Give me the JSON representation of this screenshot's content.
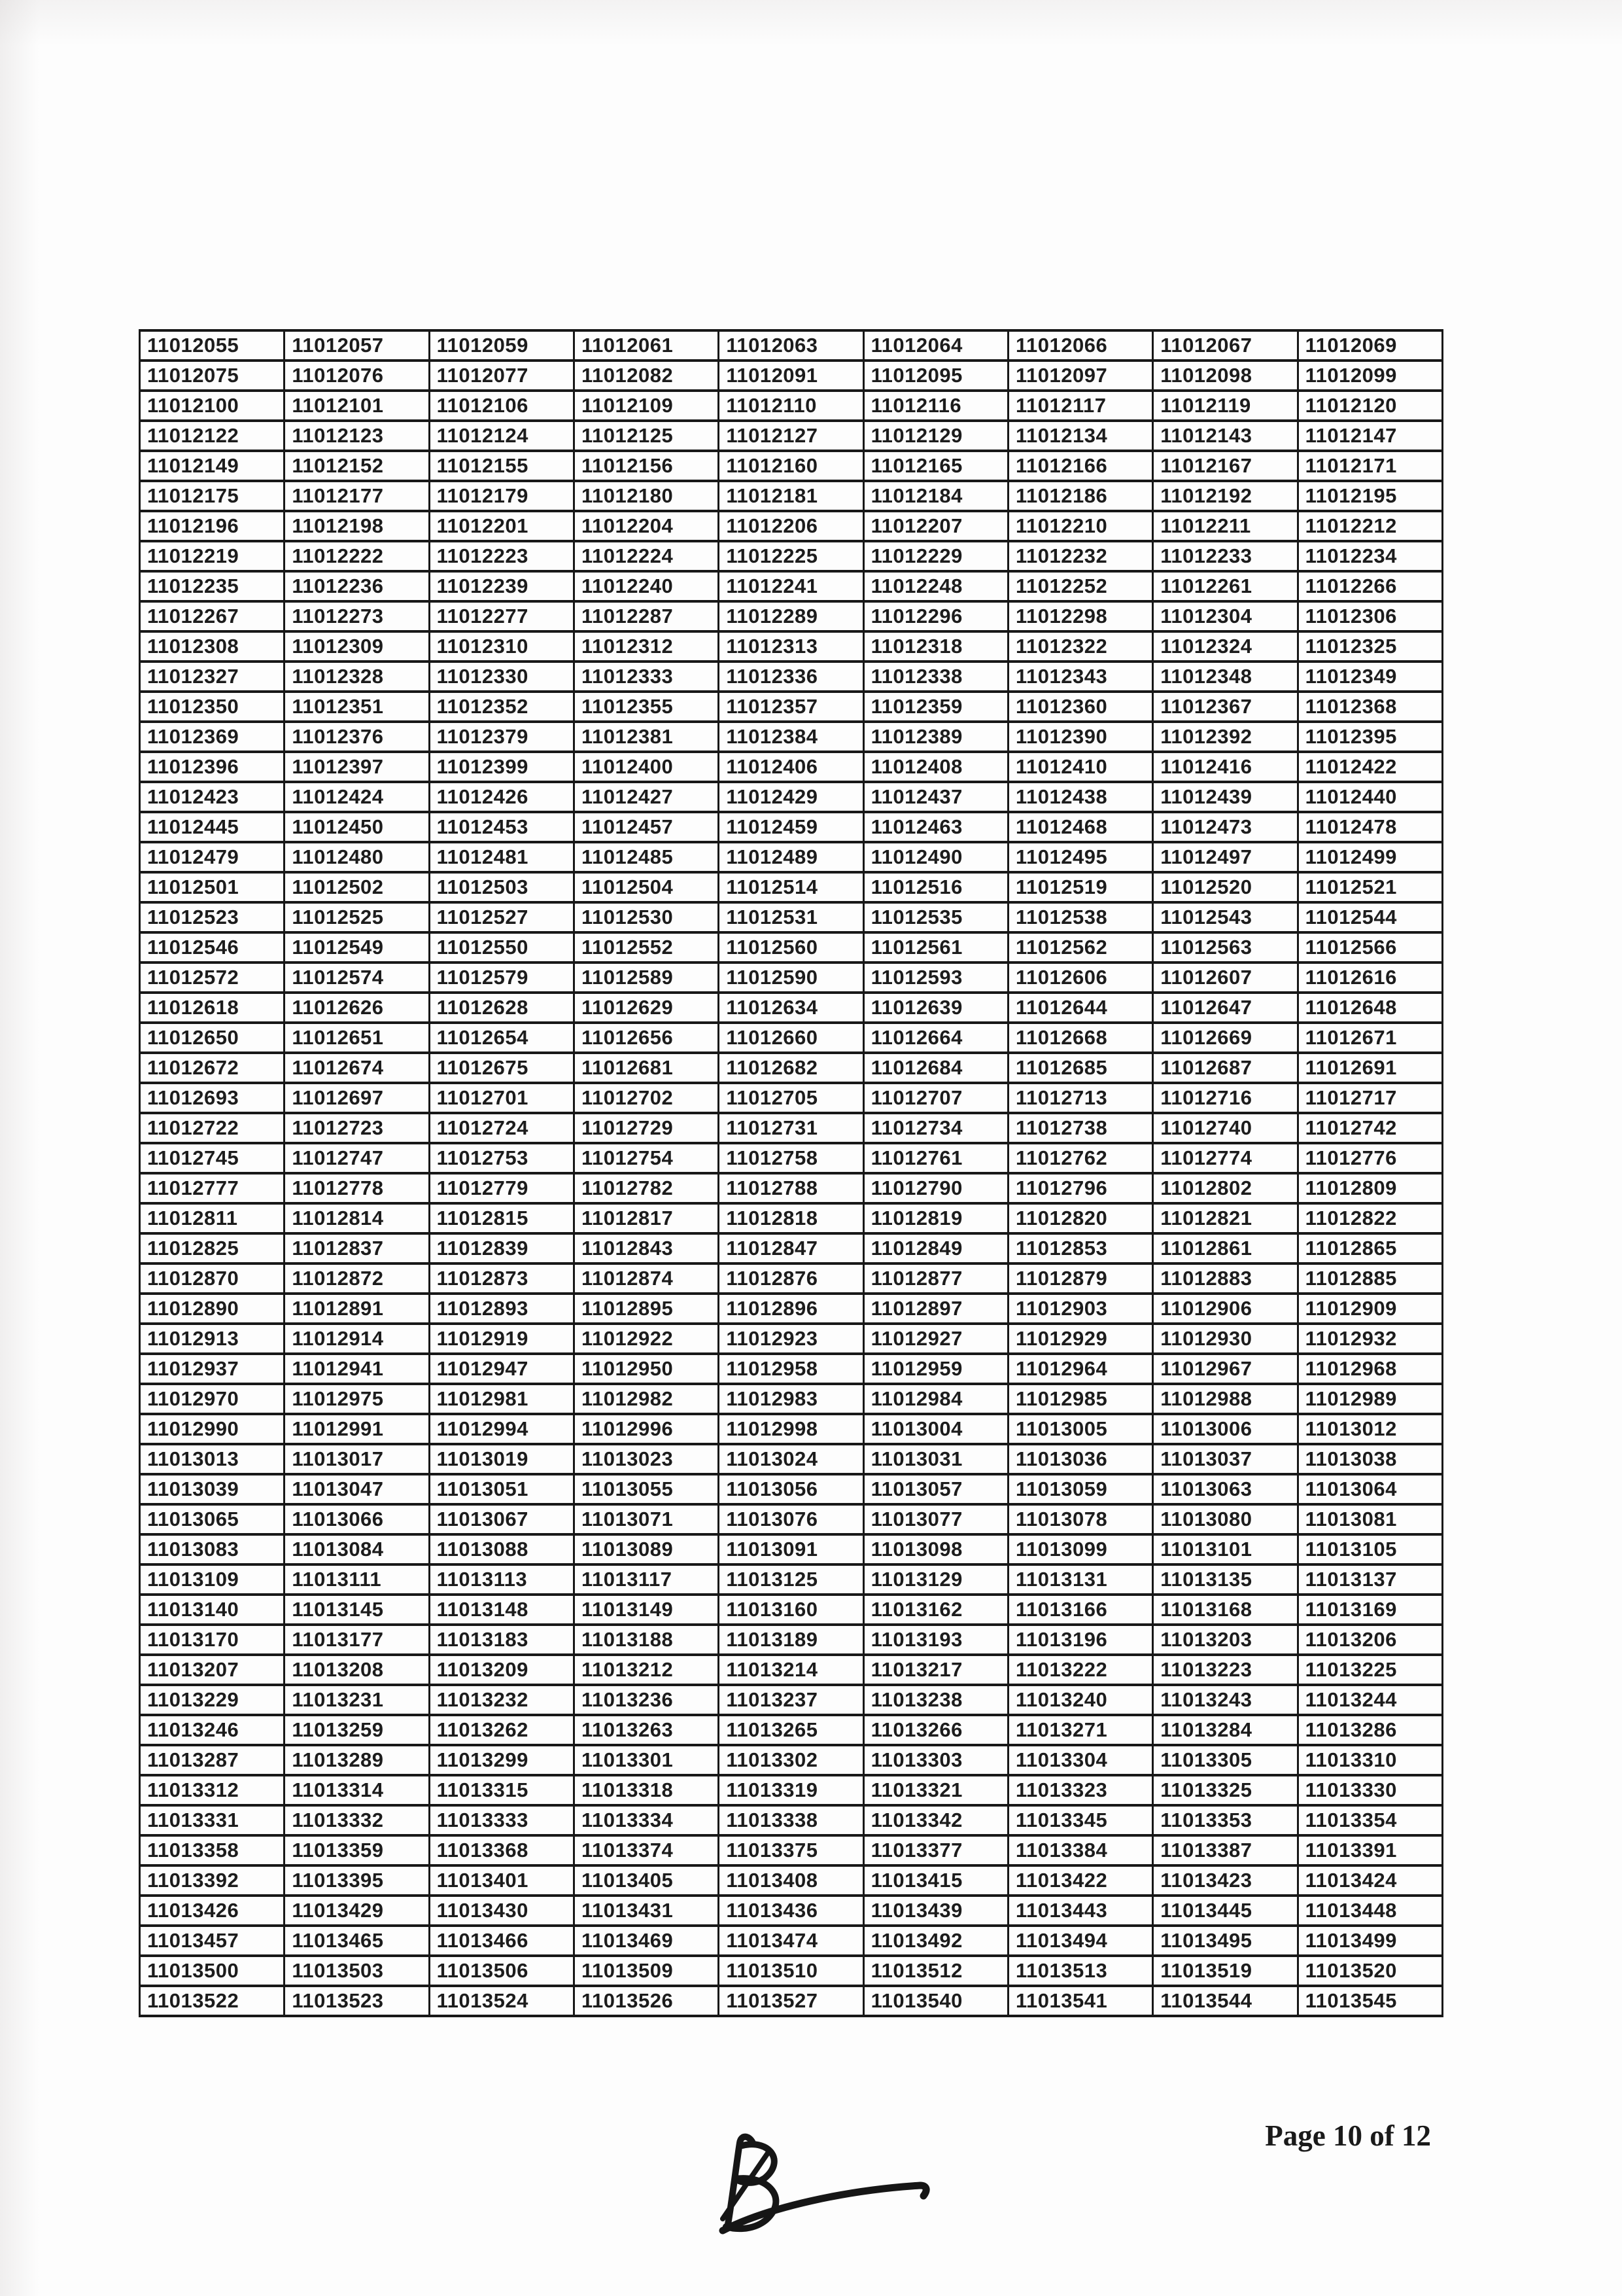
{
  "page": {
    "footer_text": "Page 10 of 12"
  },
  "table": {
    "columns": 9,
    "rows": [
      [
        "11012055",
        "11012057",
        "11012059",
        "11012061",
        "11012063",
        "11012064",
        "11012066",
        "11012067",
        "11012069"
      ],
      [
        "11012075",
        "11012076",
        "11012077",
        "11012082",
        "11012091",
        "11012095",
        "11012097",
        "11012098",
        "11012099"
      ],
      [
        "11012100",
        "11012101",
        "11012106",
        "11012109",
        "11012110",
        "11012116",
        "11012117",
        "11012119",
        "11012120"
      ],
      [
        "11012122",
        "11012123",
        "11012124",
        "11012125",
        "11012127",
        "11012129",
        "11012134",
        "11012143",
        "11012147"
      ],
      [
        "11012149",
        "11012152",
        "11012155",
        "11012156",
        "11012160",
        "11012165",
        "11012166",
        "11012167",
        "11012171"
      ],
      [
        "11012175",
        "11012177",
        "11012179",
        "11012180",
        "11012181",
        "11012184",
        "11012186",
        "11012192",
        "11012195"
      ],
      [
        "11012196",
        "11012198",
        "11012201",
        "11012204",
        "11012206",
        "11012207",
        "11012210",
        "11012211",
        "11012212"
      ],
      [
        "11012219",
        "11012222",
        "11012223",
        "11012224",
        "11012225",
        "11012229",
        "11012232",
        "11012233",
        "11012234"
      ],
      [
        "11012235",
        "11012236",
        "11012239",
        "11012240",
        "11012241",
        "11012248",
        "11012252",
        "11012261",
        "11012266"
      ],
      [
        "11012267",
        "11012273",
        "11012277",
        "11012287",
        "11012289",
        "11012296",
        "11012298",
        "11012304",
        "11012306"
      ],
      [
        "11012308",
        "11012309",
        "11012310",
        "11012312",
        "11012313",
        "11012318",
        "11012322",
        "11012324",
        "11012325"
      ],
      [
        "11012327",
        "11012328",
        "11012330",
        "11012333",
        "11012336",
        "11012338",
        "11012343",
        "11012348",
        "11012349"
      ],
      [
        "11012350",
        "11012351",
        "11012352",
        "11012355",
        "11012357",
        "11012359",
        "11012360",
        "11012367",
        "11012368"
      ],
      [
        "11012369",
        "11012376",
        "11012379",
        "11012381",
        "11012384",
        "11012389",
        "11012390",
        "11012392",
        "11012395"
      ],
      [
        "11012396",
        "11012397",
        "11012399",
        "11012400",
        "11012406",
        "11012408",
        "11012410",
        "11012416",
        "11012422"
      ],
      [
        "11012423",
        "11012424",
        "11012426",
        "11012427",
        "11012429",
        "11012437",
        "11012438",
        "11012439",
        "11012440"
      ],
      [
        "11012445",
        "11012450",
        "11012453",
        "11012457",
        "11012459",
        "11012463",
        "11012468",
        "11012473",
        "11012478"
      ],
      [
        "11012479",
        "11012480",
        "11012481",
        "11012485",
        "11012489",
        "11012490",
        "11012495",
        "11012497",
        "11012499"
      ],
      [
        "11012501",
        "11012502",
        "11012503",
        "11012504",
        "11012514",
        "11012516",
        "11012519",
        "11012520",
        "11012521"
      ],
      [
        "11012523",
        "11012525",
        "11012527",
        "11012530",
        "11012531",
        "11012535",
        "11012538",
        "11012543",
        "11012544"
      ],
      [
        "11012546",
        "11012549",
        "11012550",
        "11012552",
        "11012560",
        "11012561",
        "11012562",
        "11012563",
        "11012566"
      ],
      [
        "11012572",
        "11012574",
        "11012579",
        "11012589",
        "11012590",
        "11012593",
        "11012606",
        "11012607",
        "11012616"
      ],
      [
        "11012618",
        "11012626",
        "11012628",
        "11012629",
        "11012634",
        "11012639",
        "11012644",
        "11012647",
        "11012648"
      ],
      [
        "11012650",
        "11012651",
        "11012654",
        "11012656",
        "11012660",
        "11012664",
        "11012668",
        "11012669",
        "11012671"
      ],
      [
        "11012672",
        "11012674",
        "11012675",
        "11012681",
        "11012682",
        "11012684",
        "11012685",
        "11012687",
        "11012691"
      ],
      [
        "11012693",
        "11012697",
        "11012701",
        "11012702",
        "11012705",
        "11012707",
        "11012713",
        "11012716",
        "11012717"
      ],
      [
        "11012722",
        "11012723",
        "11012724",
        "11012729",
        "11012731",
        "11012734",
        "11012738",
        "11012740",
        "11012742"
      ],
      [
        "11012745",
        "11012747",
        "11012753",
        "11012754",
        "11012758",
        "11012761",
        "11012762",
        "11012774",
        "11012776"
      ],
      [
        "11012777",
        "11012778",
        "11012779",
        "11012782",
        "11012788",
        "11012790",
        "11012796",
        "11012802",
        "11012809"
      ],
      [
        "11012811",
        "11012814",
        "11012815",
        "11012817",
        "11012818",
        "11012819",
        "11012820",
        "11012821",
        "11012822"
      ],
      [
        "11012825",
        "11012837",
        "11012839",
        "11012843",
        "11012847",
        "11012849",
        "11012853",
        "11012861",
        "11012865"
      ],
      [
        "11012870",
        "11012872",
        "11012873",
        "11012874",
        "11012876",
        "11012877",
        "11012879",
        "11012883",
        "11012885"
      ],
      [
        "11012890",
        "11012891",
        "11012893",
        "11012895",
        "11012896",
        "11012897",
        "11012903",
        "11012906",
        "11012909"
      ],
      [
        "11012913",
        "11012914",
        "11012919",
        "11012922",
        "11012923",
        "11012927",
        "11012929",
        "11012930",
        "11012932"
      ],
      [
        "11012937",
        "11012941",
        "11012947",
        "11012950",
        "11012958",
        "11012959",
        "11012964",
        "11012967",
        "11012968"
      ],
      [
        "11012970",
        "11012975",
        "11012981",
        "11012982",
        "11012983",
        "11012984",
        "11012985",
        "11012988",
        "11012989"
      ],
      [
        "11012990",
        "11012991",
        "11012994",
        "11012996",
        "11012998",
        "11013004",
        "11013005",
        "11013006",
        "11013012"
      ],
      [
        "11013013",
        "11013017",
        "11013019",
        "11013023",
        "11013024",
        "11013031",
        "11013036",
        "11013037",
        "11013038"
      ],
      [
        "11013039",
        "11013047",
        "11013051",
        "11013055",
        "11013056",
        "11013057",
        "11013059",
        "11013063",
        "11013064"
      ],
      [
        "11013065",
        "11013066",
        "11013067",
        "11013071",
        "11013076",
        "11013077",
        "11013078",
        "11013080",
        "11013081"
      ],
      [
        "11013083",
        "11013084",
        "11013088",
        "11013089",
        "11013091",
        "11013098",
        "11013099",
        "11013101",
        "11013105"
      ],
      [
        "11013109",
        "11013111",
        "11013113",
        "11013117",
        "11013125",
        "11013129",
        "11013131",
        "11013135",
        "11013137"
      ],
      [
        "11013140",
        "11013145",
        "11013148",
        "11013149",
        "11013160",
        "11013162",
        "11013166",
        "11013168",
        "11013169"
      ],
      [
        "11013170",
        "11013177",
        "11013183",
        "11013188",
        "11013189",
        "11013193",
        "11013196",
        "11013203",
        "11013206"
      ],
      [
        "11013207",
        "11013208",
        "11013209",
        "11013212",
        "11013214",
        "11013217",
        "11013222",
        "11013223",
        "11013225"
      ],
      [
        "11013229",
        "11013231",
        "11013232",
        "11013236",
        "11013237",
        "11013238",
        "11013240",
        "11013243",
        "11013244"
      ],
      [
        "11013246",
        "11013259",
        "11013262",
        "11013263",
        "11013265",
        "11013266",
        "11013271",
        "11013284",
        "11013286"
      ],
      [
        "11013287",
        "11013289",
        "11013299",
        "11013301",
        "11013302",
        "11013303",
        "11013304",
        "11013305",
        "11013310"
      ],
      [
        "11013312",
        "11013314",
        "11013315",
        "11013318",
        "11013319",
        "11013321",
        "11013323",
        "11013325",
        "11013330"
      ],
      [
        "11013331",
        "11013332",
        "11013333",
        "11013334",
        "11013338",
        "11013342",
        "11013345",
        "11013353",
        "11013354"
      ],
      [
        "11013358",
        "11013359",
        "11013368",
        "11013374",
        "11013375",
        "11013377",
        "11013384",
        "11013387",
        "11013391"
      ],
      [
        "11013392",
        "11013395",
        "11013401",
        "11013405",
        "11013408",
        "11013415",
        "11013422",
        "11013423",
        "11013424"
      ],
      [
        "11013426",
        "11013429",
        "11013430",
        "11013431",
        "11013436",
        "11013439",
        "11013443",
        "11013445",
        "11013448"
      ],
      [
        "11013457",
        "11013465",
        "11013466",
        "11013469",
        "11013474",
        "11013492",
        "11013494",
        "11013495",
        "11013499"
      ],
      [
        "11013500",
        "11013503",
        "11013506",
        "11013509",
        "11013510",
        "11013512",
        "11013513",
        "11013519",
        "11013520"
      ],
      [
        "11013522",
        "11013523",
        "11013524",
        "11013526",
        "11013527",
        "11013540",
        "11013541",
        "11013544",
        "11013545"
      ]
    ]
  }
}
